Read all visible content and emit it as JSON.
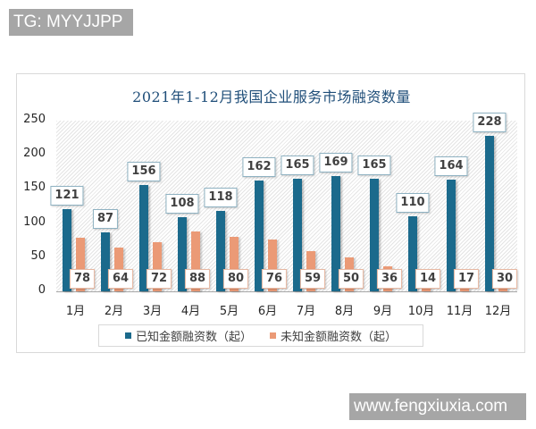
{
  "watermarks": {
    "top": "TG: MYYJJPP",
    "bottom": "www.fengxiuxia.com"
  },
  "colors": {
    "known": "#1b6a8c",
    "unknown": "#eb9a76",
    "title": "#1f4e79"
  },
  "chart_data": {
    "type": "bar",
    "title": "2021年1-12月我国企业服务市场融资数量",
    "xlabel": "",
    "ylabel": "",
    "ylim": [
      0,
      250
    ],
    "yticks": [
      "0",
      "50",
      "100",
      "150",
      "200",
      "250"
    ],
    "categories": [
      "1月",
      "2月",
      "3月",
      "4月",
      "5月",
      "6月",
      "7月",
      "8月",
      "9月",
      "10月",
      "11月",
      "12月"
    ],
    "series": [
      {
        "name": "已知金额融资数（起）",
        "values": [
          121,
          87,
          156,
          108,
          118,
          162,
          165,
          169,
          165,
          110,
          164,
          228
        ]
      },
      {
        "name": "未知金额融资数（起）",
        "values": [
          78,
          64,
          72,
          88,
          80,
          76,
          59,
          50,
          36,
          14,
          17,
          30
        ]
      }
    ],
    "grid": false,
    "legend_position": "bottom",
    "data_labels": true
  }
}
